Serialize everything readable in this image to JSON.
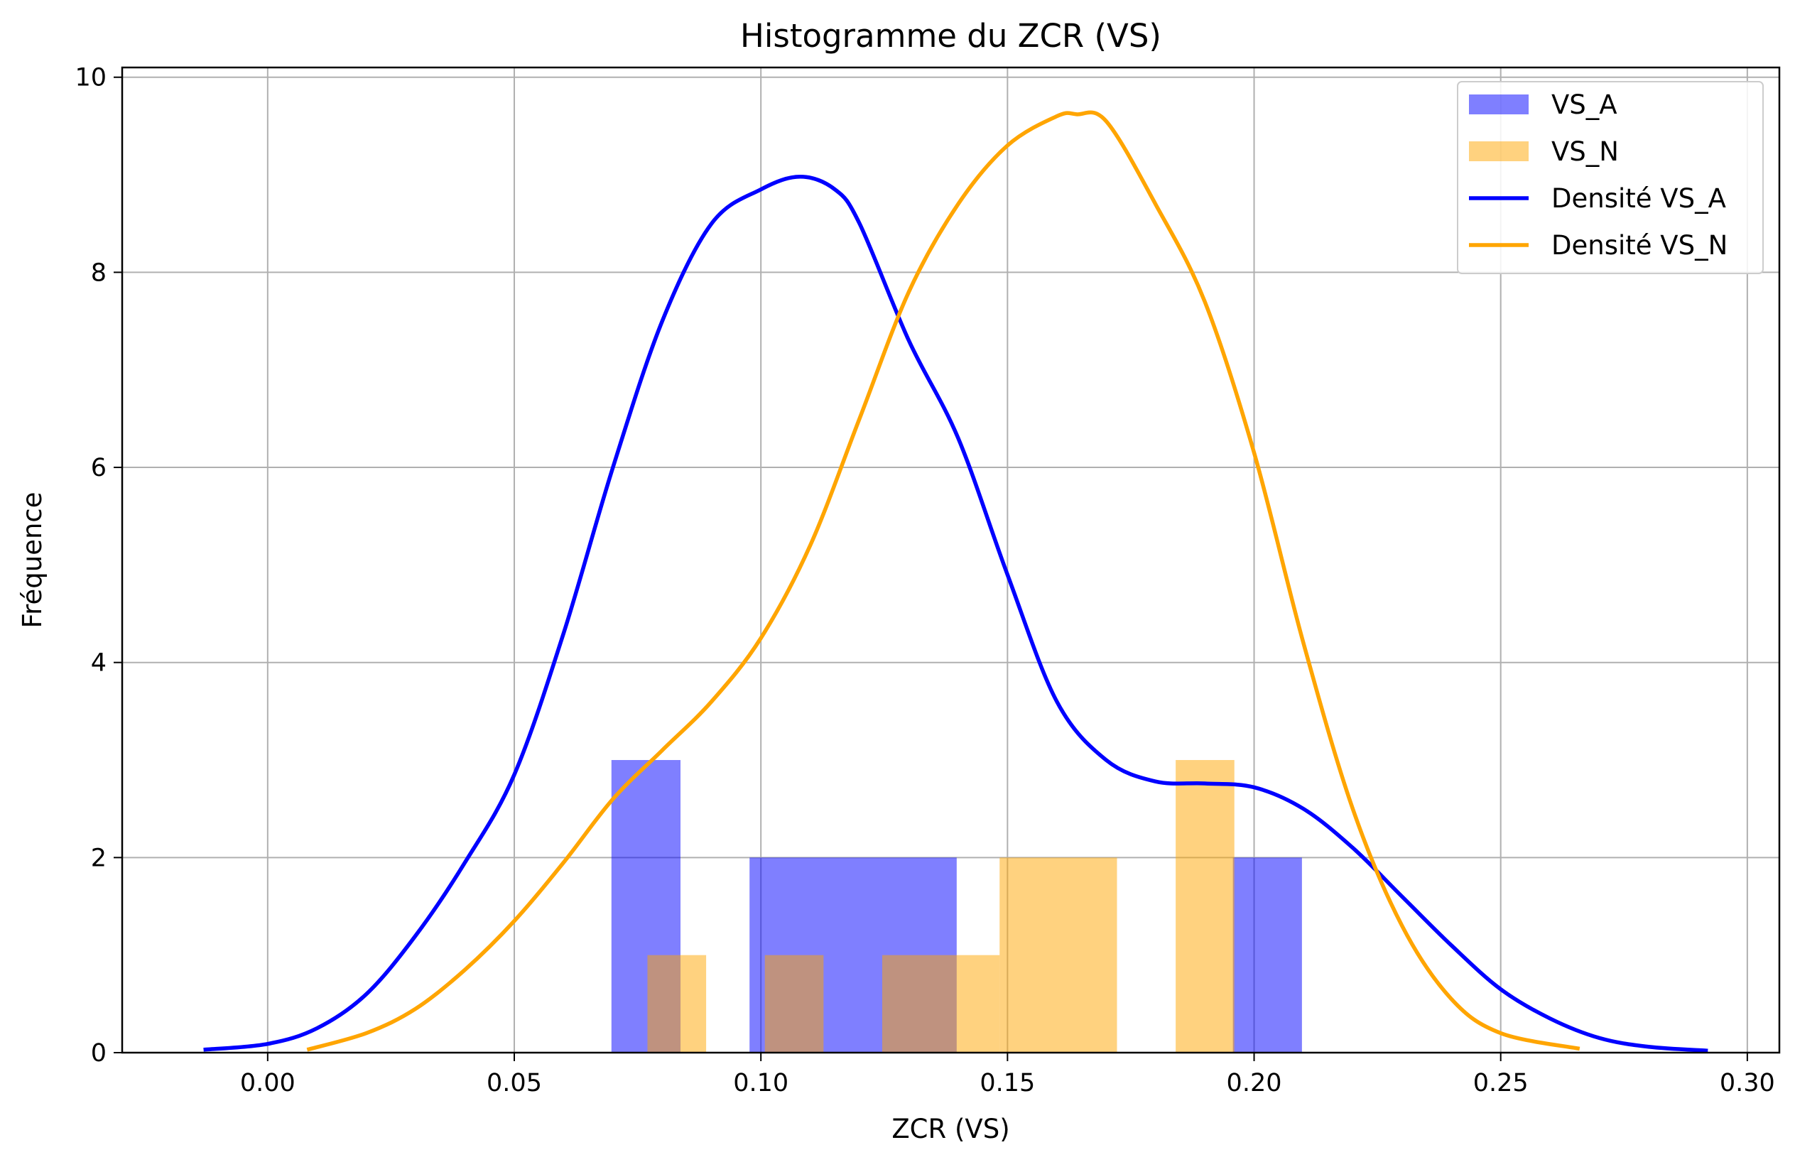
{
  "chart_data": {
    "type": "bar",
    "title": "Histogramme du ZCR (VS)",
    "xlabel": "ZCR (VS)",
    "ylabel": "Fréquence",
    "xlim": [
      -0.0295,
      0.3065
    ],
    "ylim": [
      0,
      10.1
    ],
    "xticks": [
      0.0,
      0.05,
      0.1,
      0.15,
      0.2,
      0.25,
      0.3
    ],
    "xtick_labels": [
      "0.00",
      "0.05",
      "0.10",
      "0.15",
      "0.20",
      "0.25",
      "0.30"
    ],
    "yticks": [
      0,
      2,
      4,
      6,
      8,
      10
    ],
    "ytick_labels": [
      "0",
      "2",
      "4",
      "6",
      "8",
      "10"
    ],
    "grid": true,
    "legend_position": "top-right",
    "legend": [
      "VS_A",
      "VS_N",
      "Densité VS_A",
      "Densité VS_N"
    ],
    "histograms": [
      {
        "name": "VS_A",
        "color": "#0000ff",
        "opacity": 0.5,
        "bins": [
          {
            "x0": 0.0697,
            "x1": 0.0837,
            "count": 3
          },
          {
            "x0": 0.0977,
            "x1": 0.1397,
            "count": 2
          },
          {
            "x0": 0.1957,
            "x1": 0.2097,
            "count": 2
          }
        ]
      },
      {
        "name": "VS_N",
        "color": "#ffa500",
        "opacity": 0.5,
        "bins": [
          {
            "x0": 0.077,
            "x1": 0.0889,
            "count": 1
          },
          {
            "x0": 0.1008,
            "x1": 0.1127,
            "count": 1
          },
          {
            "x0": 0.1246,
            "x1": 0.1484,
            "count": 1
          },
          {
            "x0": 0.1484,
            "x1": 0.1722,
            "count": 2
          },
          {
            "x0": 0.1841,
            "x1": 0.196,
            "count": 3
          }
        ]
      }
    ],
    "series": [
      {
        "name": "Densité VS_A",
        "color": "#0000ff",
        "x": [
          -0.013,
          0.0,
          0.01,
          0.02,
          0.03,
          0.04,
          0.05,
          0.06,
          0.07,
          0.08,
          0.09,
          0.1,
          0.108,
          0.115,
          0.12,
          0.13,
          0.14,
          0.15,
          0.16,
          0.17,
          0.18,
          0.19,
          0.2,
          0.21,
          0.22,
          0.23,
          0.24,
          0.25,
          0.26,
          0.27,
          0.28,
          0.292
        ],
        "y": [
          0.03,
          0.09,
          0.25,
          0.6,
          1.2,
          1.95,
          2.85,
          4.3,
          6.0,
          7.5,
          8.5,
          8.85,
          8.98,
          8.85,
          8.5,
          7.3,
          6.3,
          4.9,
          3.6,
          3.0,
          2.78,
          2.76,
          2.72,
          2.5,
          2.1,
          1.6,
          1.1,
          0.65,
          0.35,
          0.15,
          0.06,
          0.02
        ]
      },
      {
        "name": "Densité VS_N",
        "color": "#ffa500",
        "x": [
          0.008,
          0.02,
          0.03,
          0.04,
          0.05,
          0.06,
          0.07,
          0.08,
          0.09,
          0.1,
          0.11,
          0.12,
          0.13,
          0.14,
          0.15,
          0.16,
          0.164,
          0.17,
          0.18,
          0.19,
          0.2,
          0.21,
          0.22,
          0.23,
          0.24,
          0.25,
          0.266
        ],
        "y": [
          0.03,
          0.2,
          0.45,
          0.85,
          1.35,
          1.95,
          2.6,
          3.1,
          3.6,
          4.25,
          5.2,
          6.5,
          7.8,
          8.7,
          9.3,
          9.6,
          9.62,
          9.55,
          8.7,
          7.7,
          6.15,
          4.2,
          2.5,
          1.3,
          0.55,
          0.2,
          0.04
        ]
      }
    ]
  },
  "colors": {
    "vs_a": "#0000ff",
    "vs_n": "#ffa500",
    "grid": "#b0b0b0"
  }
}
